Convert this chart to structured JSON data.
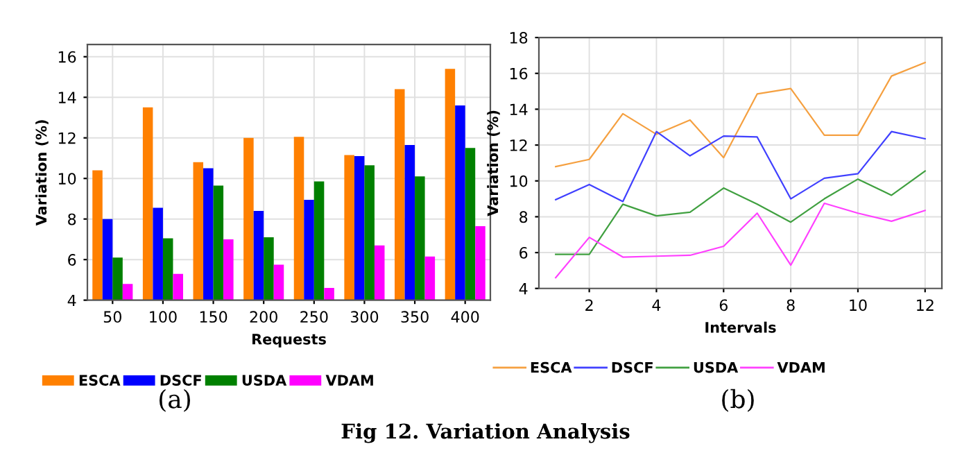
{
  "chart_data": [
    {
      "type": "bar",
      "xlabel": "Requests",
      "ylabel": "Variation (%)",
      "categories": [
        "50",
        "100",
        "150",
        "200",
        "250",
        "300",
        "350",
        "400"
      ],
      "ylim": [
        4,
        16.6
      ],
      "yticks": [
        4,
        6,
        8,
        10,
        12,
        14,
        16
      ],
      "grid": true,
      "legend": "bottom",
      "annotations": [
        "(a)"
      ],
      "series": [
        {
          "name": "ESCA",
          "color": "#ff8000",
          "values": [
            10.4,
            13.5,
            10.8,
            12.0,
            12.05,
            11.15,
            14.4,
            15.4
          ]
        },
        {
          "name": "DSCF",
          "color": "#0000ff",
          "values": [
            8.0,
            8.55,
            10.5,
            8.4,
            8.95,
            11.1,
            11.65,
            13.6
          ]
        },
        {
          "name": "USDA",
          "color": "#008000",
          "values": [
            6.1,
            7.05,
            9.65,
            7.1,
            9.85,
            10.65,
            10.1,
            11.5
          ]
        },
        {
          "name": "VDAM",
          "color": "#ff00ff",
          "values": [
            4.8,
            5.3,
            7.0,
            5.75,
            4.6,
            6.7,
            6.15,
            7.65
          ]
        }
      ]
    },
    {
      "type": "line",
      "xlabel": "Intervals",
      "ylabel": "Variation (%)",
      "x": [
        1,
        2,
        3,
        4,
        5,
        6,
        7,
        8,
        9,
        10,
        11,
        12
      ],
      "xlim": [
        0.5,
        12.5
      ],
      "xticks": [
        2,
        4,
        6,
        8,
        10,
        12
      ],
      "ylim": [
        4,
        18
      ],
      "yticks": [
        4,
        6,
        8,
        10,
        12,
        14,
        16,
        18
      ],
      "grid": true,
      "legend": "bottom",
      "annotations": [
        "(b)",
        "Fig 12. Variation Analysis"
      ],
      "series": [
        {
          "name": "ESCA",
          "color": "#f5a040",
          "values": [
            10.8,
            11.2,
            13.75,
            12.6,
            13.4,
            11.3,
            14.85,
            15.15,
            12.55,
            12.55,
            15.85,
            16.6
          ]
        },
        {
          "name": "DSCF",
          "color": "#4040ff",
          "values": [
            8.95,
            9.8,
            8.85,
            12.75,
            11.4,
            12.5,
            12.45,
            9.0,
            10.15,
            10.4,
            12.75,
            12.35
          ]
        },
        {
          "name": "USDA",
          "color": "#40a040",
          "values": [
            5.9,
            5.9,
            8.7,
            8.05,
            8.25,
            9.6,
            8.7,
            7.7,
            9.0,
            10.1,
            9.2,
            10.55
          ]
        },
        {
          "name": "VDAM",
          "color": "#ff40ff",
          "values": [
            4.6,
            6.85,
            5.75,
            5.8,
            5.85,
            6.35,
            8.2,
            5.3,
            8.75,
            8.2,
            7.75,
            8.35
          ]
        }
      ]
    }
  ]
}
